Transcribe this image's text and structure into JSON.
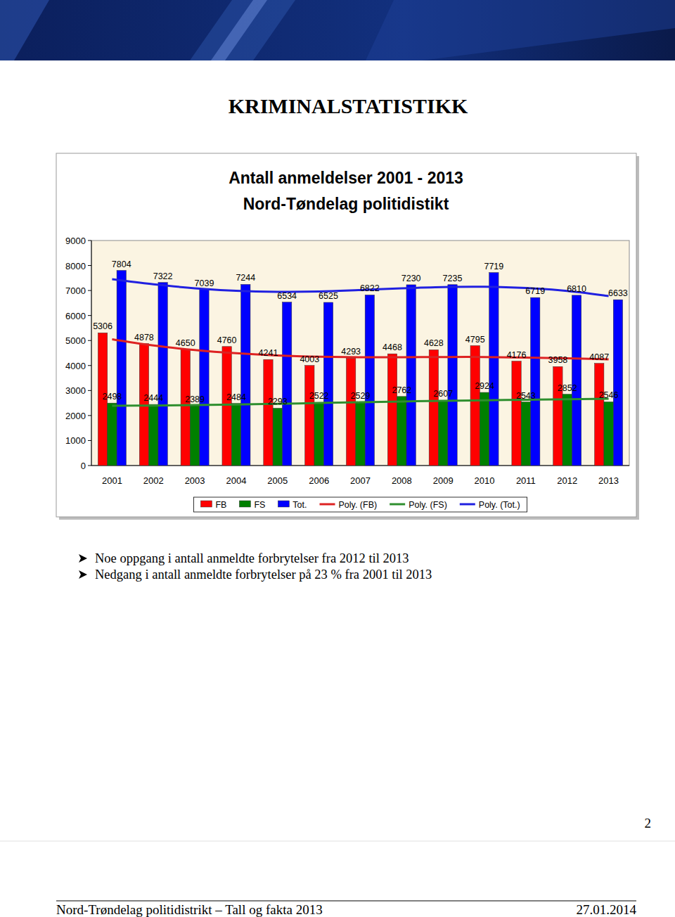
{
  "heading": "KRIMINALSTATISTIKK",
  "chart_data": {
    "type": "bar",
    "title": "Antall anmeldelser 2001 - 2013",
    "subtitle": "Nord-Tøndelag politidistikt",
    "categories": [
      "2001",
      "2002",
      "2003",
      "2004",
      "2005",
      "2006",
      "2007",
      "2008",
      "2009",
      "2010",
      "2011",
      "2012",
      "2013"
    ],
    "series": [
      {
        "name": "FB",
        "type": "bar",
        "color": "#ff0000",
        "values": [
          5306,
          4878,
          4650,
          4760,
          4241,
          4003,
          4293,
          4468,
          4628,
          4795,
          4176,
          3958,
          4087
        ]
      },
      {
        "name": "FS",
        "type": "bar",
        "color": "#008000",
        "values": [
          2498,
          2444,
          2389,
          2484,
          2293,
          2522,
          2529,
          2762,
          2607,
          2924,
          2543,
          2852,
          2546
        ]
      },
      {
        "name": "Tot.",
        "type": "bar",
        "color": "#0000ff",
        "values": [
          7804,
          7322,
          7039,
          7244,
          6534,
          6525,
          6822,
          7230,
          7235,
          7719,
          6719,
          6810,
          6633
        ]
      },
      {
        "name": "Poly. (FB)",
        "type": "line",
        "line_style": "solid",
        "color": "#dd2222",
        "values": [
          5050,
          4800,
          4620,
          4490,
          4400,
          4350,
          4330,
          4330,
          4340,
          4340,
          4320,
          4290,
          4250
        ]
      },
      {
        "name": "Poly. (FS)",
        "type": "line",
        "line_style": "solid",
        "color": "#2f8f2f",
        "values": [
          2390,
          2400,
          2420,
          2440,
          2470,
          2500,
          2530,
          2560,
          2590,
          2610,
          2630,
          2650,
          2670
        ]
      },
      {
        "name": "Poly. (Tot.)",
        "type": "line",
        "line_style": "solid",
        "color": "#2020e0",
        "values": [
          7450,
          7250,
          7090,
          6990,
          6950,
          6960,
          7020,
          7090,
          7140,
          7150,
          7100,
          6980,
          6780
        ]
      }
    ],
    "ylim": [
      0,
      9000
    ],
    "yticks": [
      0,
      1000,
      2000,
      3000,
      4000,
      5000,
      6000,
      7000,
      8000,
      9000
    ],
    "grid": false,
    "legend": "bottom",
    "data_labels": true
  },
  "bullets": [
    "Noe oppgang i antall anmeldte forbrytelser fra 2012 til 2013",
    "Nedgang i antall anmeldte forbrytelser på 23 % fra 2001 til 2013"
  ],
  "footer": {
    "left": "Nord-Trøndelag politidistrikt – Tall og fakta 2013",
    "date": "27.01.2014",
    "page": "2"
  }
}
